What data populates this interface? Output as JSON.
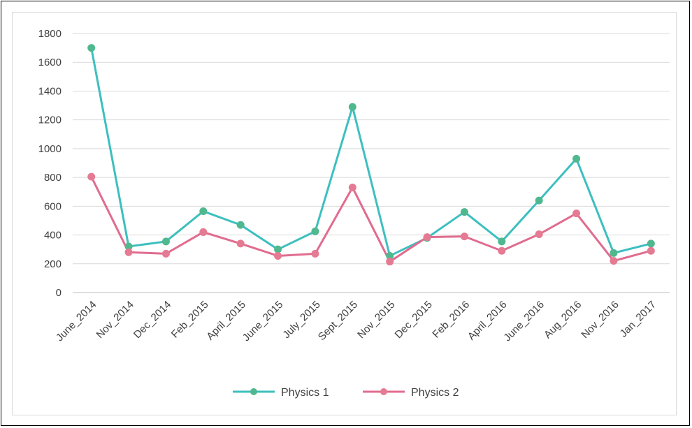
{
  "chart_data": {
    "type": "line",
    "title": "",
    "xlabel": "",
    "ylabel": "",
    "categories": [
      "June_2014",
      "Nov_2014",
      "Dec_2014",
      "Feb_2015",
      "April_2015",
      "June_2015",
      "July_2015",
      "Sept_2015",
      "Nov_2015",
      "Dec_2015",
      "Feb_2016",
      "April_2016",
      "June_2016",
      "Aug_2016",
      "Nov_2016",
      "Jan_2017"
    ],
    "ylim": [
      0,
      1800
    ],
    "yticks": [
      0,
      200,
      400,
      600,
      800,
      1000,
      1200,
      1400,
      1600,
      1800
    ],
    "grid": true,
    "legend_position": "bottom",
    "series": [
      {
        "name": "Physics 1",
        "color": "#3dbfbf",
        "marker_color": "#4fb88f",
        "values": [
          1700,
          320,
          355,
          565,
          470,
          300,
          425,
          1290,
          255,
          380,
          560,
          355,
          640,
          930,
          275,
          340
        ]
      },
      {
        "name": "Physics 2",
        "color": "#e06c8f",
        "marker_color": "#e57a93",
        "values": [
          805,
          280,
          270,
          420,
          340,
          255,
          270,
          730,
          215,
          385,
          390,
          290,
          405,
          550,
          220,
          290
        ]
      }
    ]
  }
}
